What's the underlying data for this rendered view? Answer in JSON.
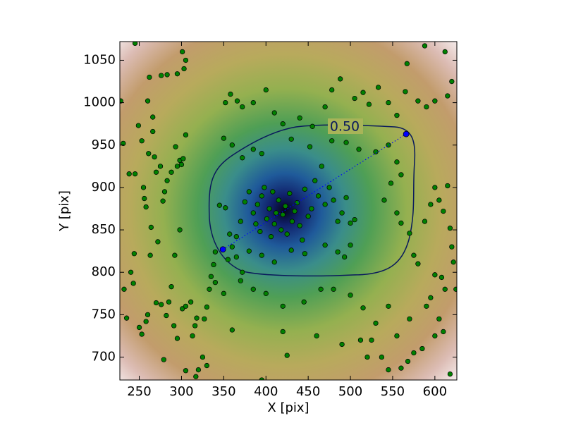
{
  "chart_data": {
    "type": "scatter",
    "xlabel": "X [pix]",
    "ylabel": "Y [pix]",
    "xlim": [
      227,
      626
    ],
    "ylim": [
      673,
      1072
    ],
    "xticks": [
      250,
      300,
      350,
      400,
      450,
      500,
      550,
      600
    ],
    "yticks": [
      700,
      750,
      800,
      850,
      900,
      950,
      1000,
      1050
    ],
    "color": "#008000",
    "contour_level": {
      "value": 0.5,
      "label": "0.50"
    },
    "markers": {
      "color": "#0000ff",
      "points": [
        [
          349,
          827
        ],
        [
          566,
          963
        ]
      ]
    },
    "points": [
      [
        228,
        1002
      ],
      [
        231,
        952
      ],
      [
        238,
        916
      ],
      [
        245,
        916
      ],
      [
        249,
        973
      ],
      [
        253,
        955
      ],
      [
        255,
        900
      ],
      [
        256,
        887
      ],
      [
        258,
        877
      ],
      [
        261,
        940
      ],
      [
        262,
        1030
      ],
      [
        266,
        966
      ],
      [
        268,
        936
      ],
      [
        270,
        918
      ],
      [
        275,
        925
      ],
      [
        278,
        884
      ],
      [
        280,
        895
      ],
      [
        283,
        908
      ],
      [
        288,
        918
      ],
      [
        293,
        948
      ],
      [
        295,
        925
      ],
      [
        298,
        932
      ],
      [
        300,
        927
      ],
      [
        302,
        934
      ],
      [
        305,
        962
      ],
      [
        303,
        1040
      ],
      [
        305,
        1050
      ],
      [
        301,
        1060
      ],
      [
        295,
        1034
      ],
      [
        283,
        1033
      ],
      [
        276,
        1032
      ],
      [
        260,
        1002
      ],
      [
        266,
        983
      ],
      [
        245,
        1070
      ],
      [
        232,
        780
      ],
      [
        235,
        746
      ],
      [
        240,
        800
      ],
      [
        243,
        787
      ],
      [
        244,
        822
      ],
      [
        250,
        735
      ],
      [
        253,
        727
      ],
      [
        258,
        742
      ],
      [
        260,
        750
      ],
      [
        263,
        820
      ],
      [
        264,
        853
      ],
      [
        270,
        764
      ],
      [
        272,
        836
      ],
      [
        276,
        762
      ],
      [
        282,
        749
      ],
      [
        285,
        765
      ],
      [
        288,
        783
      ],
      [
        292,
        820
      ],
      [
        298,
        850
      ],
      [
        301,
        757
      ],
      [
        305,
        760
      ],
      [
        311,
        765
      ],
      [
        313,
        725
      ],
      [
        316,
        737
      ],
      [
        318,
        746
      ],
      [
        327,
        745
      ],
      [
        330,
        759
      ],
      [
        333,
        780
      ],
      [
        335,
        795
      ],
      [
        338,
        809
      ],
      [
        340,
        824
      ],
      [
        325,
        700
      ],
      [
        320,
        685
      ],
      [
        317,
        677
      ],
      [
        330,
        690
      ],
      [
        305,
        684
      ],
      [
        295,
        722
      ],
      [
        291,
        737
      ],
      [
        279,
        697
      ],
      [
        345,
        879
      ],
      [
        352,
        876
      ],
      [
        357,
        845
      ],
      [
        360,
        830
      ],
      [
        365,
        842
      ],
      [
        370,
        860
      ],
      [
        375,
        883
      ],
      [
        380,
        895
      ],
      [
        385,
        870
      ],
      [
        388,
        857
      ],
      [
        390,
        880
      ],
      [
        393,
        848
      ],
      [
        395,
        890
      ],
      [
        398,
        900
      ],
      [
        401,
        863
      ],
      [
        404,
        875
      ],
      [
        406,
        842
      ],
      [
        408,
        895
      ],
      [
        410,
        857
      ],
      [
        412,
        870
      ],
      [
        415,
        885
      ],
      [
        418,
        850
      ],
      [
        420,
        868
      ],
      [
        423,
        878
      ],
      [
        425,
        845
      ],
      [
        428,
        893
      ],
      [
        431,
        860
      ],
      [
        434,
        872
      ],
      [
        437,
        882
      ],
      [
        440,
        855
      ],
      [
        443,
        838
      ],
      [
        446,
        898
      ],
      [
        450,
        866
      ],
      [
        454,
        875
      ],
      [
        458,
        908
      ],
      [
        462,
        890
      ],
      [
        466,
        925
      ],
      [
        470,
        880
      ],
      [
        475,
        900
      ],
      [
        480,
        885
      ],
      [
        485,
        860
      ],
      [
        490,
        870
      ],
      [
        495,
        888
      ],
      [
        500,
        858
      ],
      [
        505,
        862
      ],
      [
        485,
        824
      ],
      [
        493,
        818
      ],
      [
        500,
        832
      ],
      [
        470,
        832
      ],
      [
        446,
        822
      ],
      [
        430,
        826
      ],
      [
        410,
        812
      ],
      [
        395,
        820
      ],
      [
        380,
        825
      ],
      [
        365,
        818
      ],
      [
        372,
        800
      ],
      [
        355,
        815
      ],
      [
        352,
        1000
      ],
      [
        358,
        1010
      ],
      [
        366,
        1002
      ],
      [
        372,
        995
      ],
      [
        385,
        1000
      ],
      [
        400,
        1015
      ],
      [
        410,
        988
      ],
      [
        420,
        975
      ],
      [
        430,
        957
      ],
      [
        440,
        982
      ],
      [
        455,
        972
      ],
      [
        470,
        995
      ],
      [
        478,
        1015
      ],
      [
        488,
        1028
      ],
      [
        505,
        1005
      ],
      [
        515,
        1012
      ],
      [
        522,
        998
      ],
      [
        533,
        1018
      ],
      [
        545,
        1000
      ],
      [
        555,
        985
      ],
      [
        565,
        1013
      ],
      [
        580,
        1002
      ],
      [
        590,
        995
      ],
      [
        600,
        1002
      ],
      [
        615,
        1008
      ],
      [
        620,
        1025
      ],
      [
        612,
        1060
      ],
      [
        588,
        1067
      ],
      [
        567,
        1046
      ],
      [
        350,
        958
      ],
      [
        360,
        950
      ],
      [
        372,
        935
      ],
      [
        385,
        945
      ],
      [
        395,
        940
      ],
      [
        452,
        948
      ],
      [
        478,
        955
      ],
      [
        495,
        953
      ],
      [
        510,
        945
      ],
      [
        530,
        942
      ],
      [
        545,
        950
      ],
      [
        555,
        930
      ],
      [
        560,
        915
      ],
      [
        548,
        905
      ],
      [
        540,
        885
      ],
      [
        555,
        870
      ],
      [
        560,
        858
      ],
      [
        570,
        846
      ],
      [
        575,
        820
      ],
      [
        580,
        810
      ],
      [
        588,
        860
      ],
      [
        595,
        880
      ],
      [
        600,
        900
      ],
      [
        605,
        885
      ],
      [
        610,
        872
      ],
      [
        615,
        902
      ],
      [
        618,
        852
      ],
      [
        620,
        830
      ],
      [
        622,
        812
      ],
      [
        608,
        794
      ],
      [
        600,
        797
      ],
      [
        612,
        780
      ],
      [
        595,
        770
      ],
      [
        590,
        760
      ],
      [
        605,
        745
      ],
      [
        610,
        730
      ],
      [
        600,
        725
      ],
      [
        585,
        710
      ],
      [
        575,
        705
      ],
      [
        568,
        695
      ],
      [
        560,
        687
      ],
      [
        545,
        685
      ],
      [
        537,
        700
      ],
      [
        525,
        720
      ],
      [
        530,
        740
      ],
      [
        545,
        760
      ],
      [
        515,
        758
      ],
      [
        500,
        773
      ],
      [
        480,
        780
      ],
      [
        465,
        780
      ],
      [
        445,
        765
      ],
      [
        420,
        760
      ],
      [
        400,
        775
      ],
      [
        385,
        780
      ],
      [
        370,
        790
      ],
      [
        350,
        775
      ],
      [
        340,
        788
      ],
      [
        360,
        732
      ],
      [
        420,
        730
      ],
      [
        425,
        702
      ],
      [
        395,
        673
      ],
      [
        460,
        725
      ],
      [
        490,
        715
      ],
      [
        512,
        720
      ],
      [
        520,
        700
      ],
      [
        555,
        725
      ],
      [
        570,
        745
      ],
      [
        618,
        680
      ],
      [
        625,
        780
      ]
    ]
  }
}
